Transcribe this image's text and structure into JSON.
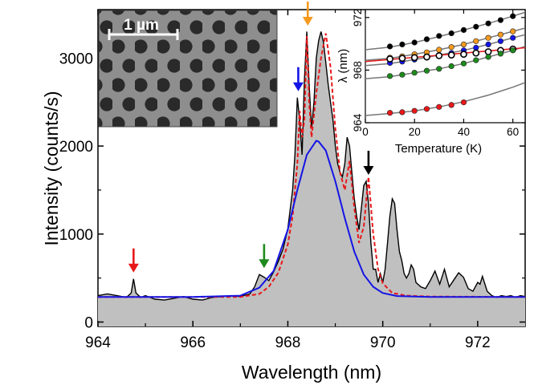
{
  "chart_data": [
    {
      "type": "area",
      "xlabel": "Wavelength (nm)",
      "ylabel": "Intensity (counts/s)",
      "xlim": [
        964,
        973
      ],
      "ylim": [
        -50,
        3550
      ],
      "xticks": [
        "964",
        "966",
        "968",
        "970",
        "972"
      ],
      "yticks": [
        "0",
        "1000",
        "2000",
        "3000"
      ],
      "series": [
        {
          "style": "measured spectrum (black line, grey fill)",
          "x": [
            964.0,
            964.2,
            964.4,
            964.6,
            964.7,
            964.75,
            964.8,
            964.9,
            965.0,
            965.2,
            965.4,
            965.6,
            965.8,
            966.0,
            966.2,
            966.4,
            966.6,
            966.8,
            967.0,
            967.2,
            967.3,
            967.4,
            967.5,
            967.6,
            967.7,
            967.8,
            967.9,
            968.0,
            968.1,
            968.15,
            968.2,
            968.25,
            968.3,
            968.35,
            968.4,
            968.45,
            968.5,
            968.55,
            968.6,
            968.65,
            968.7,
            968.75,
            968.8,
            968.85,
            968.9,
            968.95,
            969.0,
            969.05,
            969.1,
            969.15,
            969.2,
            969.25,
            969.3,
            969.35,
            969.4,
            969.45,
            969.5,
            969.55,
            969.6,
            969.65,
            969.7,
            969.75,
            969.8,
            969.85,
            969.9,
            969.95,
            970.0,
            970.05,
            970.1,
            970.15,
            970.2,
            970.25,
            970.3,
            970.35,
            970.4,
            970.45,
            970.5,
            970.55,
            970.6,
            970.65,
            970.7,
            970.8,
            970.9,
            971.0,
            971.1,
            971.2,
            971.3,
            971.4,
            971.5,
            971.6,
            971.7,
            971.8,
            971.9,
            972.0,
            972.05,
            972.1,
            972.2,
            972.3,
            972.4,
            972.5,
            972.6,
            972.7,
            972.8,
            972.9,
            973.0
          ],
          "y": [
            300,
            320,
            300,
            280,
            330,
            490,
            330,
            280,
            300,
            260,
            250,
            270,
            290,
            260,
            250,
            280,
            290,
            300,
            290,
            320,
            400,
            540,
            510,
            470,
            570,
            690,
            830,
            1060,
            1500,
            1900,
            2550,
            2300,
            1900,
            2750,
            3300,
            2700,
            2200,
            2500,
            3000,
            3200,
            3300,
            3180,
            2950,
            2700,
            2500,
            2300,
            2000,
            1800,
            1700,
            1650,
            1800,
            2100,
            2000,
            1700,
            1400,
            1200,
            1050,
            1300,
            1550,
            1600,
            1350,
            900,
            600,
            600,
            450,
            550,
            450,
            600,
            900,
            1200,
            1400,
            1350,
            1050,
            800,
            700,
            550,
            500,
            550,
            650,
            600,
            450,
            400,
            380,
            470,
            580,
            430,
            600,
            400,
            480,
            560,
            510,
            380,
            350,
            450,
            430,
            520,
            350,
            300,
            280,
            300,
            290,
            300,
            280,
            300,
            290
          ]
        },
        {
          "style": "multi-peak fit (red dashed)",
          "x": [
            964.0,
            965.0,
            966.0,
            967.0,
            967.4,
            967.6,
            967.8,
            968.0,
            968.1,
            968.2,
            968.25,
            968.3,
            968.35,
            968.4,
            968.45,
            968.5,
            968.6,
            968.7,
            968.8,
            968.9,
            969.0,
            969.1,
            969.2,
            969.3,
            969.4,
            969.5,
            969.6,
            969.7,
            969.8,
            969.9,
            970.0,
            970.2,
            970.5,
            971.0,
            973.0
          ],
          "y": [
            285,
            285,
            285,
            285,
            320,
            400,
            560,
            880,
            1200,
            1800,
            2400,
            2100,
            2300,
            3250,
            2500,
            2100,
            2600,
            3000,
            3280,
            2900,
            2200,
            1700,
            1500,
            1830,
            1300,
            900,
            1080,
            1650,
            1000,
            600,
            440,
            330,
            300,
            290,
            285
          ]
        },
        {
          "style": "broad Gaussian background (blue)",
          "x": [
            964.0,
            966.0,
            967.0,
            967.4,
            967.7,
            968.0,
            968.2,
            968.4,
            968.6,
            968.65,
            968.8,
            969.0,
            969.2,
            969.4,
            969.6,
            969.8,
            970.0,
            970.3,
            971.0,
            973.0
          ],
          "y": [
            285,
            285,
            300,
            390,
            580,
            1050,
            1500,
            1900,
            2060,
            2050,
            1950,
            1600,
            1180,
            800,
            540,
            400,
            330,
            295,
            285,
            285
          ]
        }
      ],
      "annotations": [
        {
          "type": "arrow",
          "color": "#e8181a",
          "x": 964.75
        },
        {
          "type": "arrow",
          "color": "#1e8a1e",
          "x": 967.5
        },
        {
          "type": "arrow",
          "color": "#1414e6",
          "x": 968.22
        },
        {
          "type": "arrow",
          "color": "#f59a1e",
          "x": 968.42
        },
        {
          "type": "arrow",
          "color": "#000000",
          "x": 969.7
        }
      ]
    },
    {
      "type": "scatter",
      "xlabel": "Temperature (K)",
      "ylabel": "λ (nm)",
      "xlim": [
        0,
        65
      ],
      "ylim": [
        964,
        972.6
      ],
      "xticks": [
        "0",
        "20",
        "40",
        "60"
      ],
      "yticks": [
        "964",
        "968",
        "972"
      ],
      "series": [
        {
          "color": "#000000",
          "hollow": false,
          "x": [
            10,
            15,
            20,
            25,
            30,
            35,
            40,
            45,
            50,
            55,
            60
          ],
          "y": [
            969.8,
            969.95,
            970.1,
            970.35,
            970.6,
            970.8,
            971.05,
            971.3,
            971.55,
            971.8,
            972.1
          ]
        },
        {
          "color": "#f59a1e",
          "hollow": false,
          "x": [
            10,
            15,
            20,
            25,
            30,
            35,
            40,
            45,
            50,
            55,
            60
          ],
          "y": [
            968.95,
            969.05,
            969.2,
            969.35,
            969.55,
            969.75,
            969.95,
            970.2,
            970.45,
            970.7,
            970.95
          ]
        },
        {
          "color": "#1414e6",
          "hollow": false,
          "x": [
            10,
            15,
            20,
            25,
            30,
            35,
            40,
            45,
            50,
            55,
            60
          ],
          "y": [
            968.55,
            968.65,
            968.8,
            968.95,
            969.15,
            969.3,
            969.5,
            969.7,
            969.95,
            970.2,
            970.45
          ]
        },
        {
          "color": "#000000",
          "hollow": true,
          "x": [
            10,
            15,
            20,
            25,
            30,
            35,
            40,
            45,
            50,
            55,
            60
          ],
          "y": [
            968.85,
            968.9,
            968.95,
            969.0,
            969.1,
            969.15,
            969.2,
            969.3,
            969.4,
            969.5,
            969.6
          ]
        },
        {
          "color": "#1e8a1e",
          "hollow": false,
          "x": [
            10,
            15,
            20,
            25,
            30,
            35,
            40,
            45,
            50,
            55,
            60
          ],
          "y": [
            967.55,
            967.65,
            967.8,
            967.95,
            968.1,
            968.3,
            968.5,
            968.75,
            969.0,
            969.25,
            969.5
          ]
        },
        {
          "color": "#e8181a",
          "hollow": false,
          "x": [
            10,
            15,
            20,
            25,
            30,
            35,
            40
          ],
          "y": [
            964.75,
            964.8,
            964.9,
            965.05,
            965.2,
            965.35,
            965.55
          ]
        }
      ],
      "fits": [
        {
          "color": "#777777",
          "x": [
            0,
            10,
            20,
            30,
            40,
            50,
            60,
            65
          ],
          "y": [
            969.55,
            969.75,
            970.1,
            970.55,
            971.05,
            971.55,
            972.1,
            972.4
          ]
        },
        {
          "color": "#777777",
          "x": [
            0,
            10,
            20,
            30,
            40,
            50,
            60,
            65
          ],
          "y": [
            968.75,
            968.9,
            969.2,
            969.55,
            969.95,
            970.45,
            970.95,
            971.2
          ]
        },
        {
          "color": "#777777",
          "x": [
            0,
            10,
            20,
            30,
            40,
            50,
            60,
            65
          ],
          "y": [
            968.35,
            968.5,
            968.8,
            969.15,
            969.5,
            969.95,
            970.45,
            970.7
          ]
        },
        {
          "color": "#777777",
          "x": [
            0,
            10,
            20,
            30,
            40,
            50,
            60,
            65
          ],
          "y": [
            967.35,
            967.5,
            967.8,
            968.1,
            968.5,
            969.0,
            969.5,
            969.8
          ]
        },
        {
          "color": "#e8181a",
          "x": [
            0,
            65
          ],
          "y": [
            968.65,
            969.7
          ]
        },
        {
          "color": "#777777",
          "x": [
            0,
            10,
            20,
            30,
            40,
            50,
            60,
            65
          ],
          "y": [
            964.55,
            964.7,
            964.9,
            965.2,
            965.6,
            966.1,
            966.7,
            967.05
          ]
        }
      ]
    }
  ],
  "inset_image": {
    "scale_bar_label": "1 µm"
  }
}
